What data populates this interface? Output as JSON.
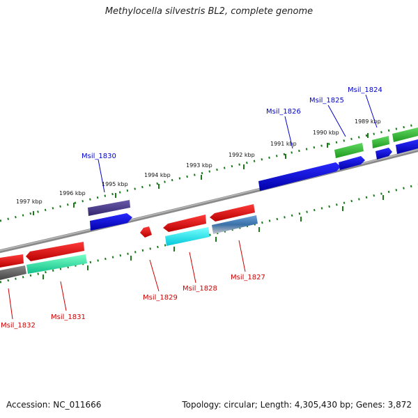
{
  "title": "Methylocella silvestris BL2, complete genome",
  "footer": {
    "accession": "Accession: NC_011666",
    "stats": "Topology: circular; Length: 4,305,430 bp; Genes: 3,872"
  },
  "colors": {
    "forward_label": "#0000cc",
    "reverse_label": "#cc0000",
    "backbone": "#8a8a8a",
    "ticks": "#1a7a1a"
  },
  "kbp_ticks": [
    "1997 kbp",
    "1996 kbp",
    "1995 kbp",
    "1994 kbp",
    "1993 kbp",
    "1992 kbp",
    "1991 kbp",
    "1990 kbp",
    "1989 kbp"
  ],
  "gene_labels": {
    "Msil_1830": "Msil_1830",
    "Msil_1826": "Msil_1826",
    "Msil_1825": "Msil_1825",
    "Msil_1824": "Msil_1824",
    "Msil_1832": "Msil_1832",
    "Msil_1831": "Msil_1831",
    "Msil_1829": "Msil_1829",
    "Msil_1828": "Msil_1828",
    "Msil_1827": "Msil_1827"
  }
}
